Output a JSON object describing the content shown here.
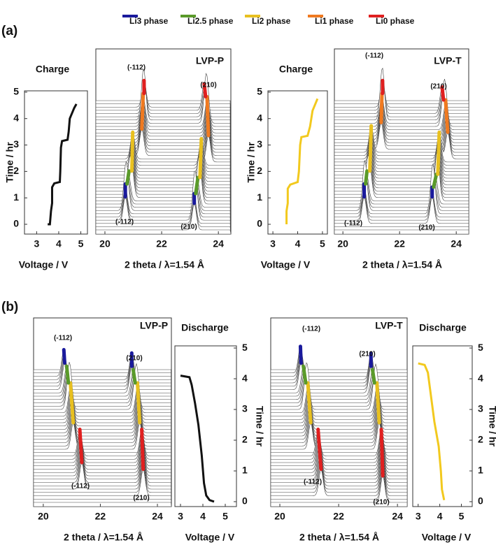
{
  "legend": [
    {
      "name": "Li3 phase",
      "color": "#1a1a9c"
    },
    {
      "name": "Li2.5 phase",
      "color": "#5a9a2a"
    },
    {
      "name": "Li2 phase",
      "color": "#e8c020"
    },
    {
      "name": "Li1 phase",
      "color": "#f07a20"
    },
    {
      "name": "Li0 phase",
      "color": "#e02020"
    }
  ],
  "panel_labels": [
    "(a)",
    "(b)"
  ],
  "chart_data": [
    {
      "type": "line",
      "title": "Charge",
      "xlabel": "Voltage / V",
      "ylabel": "Time / hr",
      "yaxis_side": "left",
      "color": "#111111",
      "x": [
        3.5,
        3.6,
        3.65,
        3.7,
        3.7,
        3.8,
        4.05,
        4.07,
        4.1,
        4.15,
        4.4,
        4.45,
        4.5,
        4.7,
        4.8
      ],
      "values": [
        0,
        0,
        0.5,
        0.8,
        1.4,
        1.55,
        1.6,
        2.0,
        2.9,
        3.15,
        3.2,
        3.5,
        4.0,
        4.4,
        4.55
      ],
      "xlim": [
        2.45,
        5.3
      ],
      "xticks": [
        3,
        4,
        5
      ],
      "ylim": [
        -0.37,
        5.05
      ],
      "yticks": [
        0,
        1,
        2,
        3,
        4,
        5
      ]
    },
    {
      "type": "waterfall",
      "title": "LVP-P",
      "xlabel": "2 theta / λ=1.54 Å",
      "xlim": [
        19.68,
        24.44
      ],
      "xticks": [
        20,
        22,
        24
      ],
      "ylim": [
        0,
        40
      ],
      "annotations": [
        "(-112)",
        "(210)",
        "(-112)",
        "(210)"
      ],
      "series": [
        {
          "name": "Li3 phase",
          "color": "#1a1a9c",
          "x": [
            20.72,
            20.72
          ],
          "values": [
            2,
            6
          ]
        },
        {
          "name": "Li2.5 phase",
          "color": "#5a9a2a",
          "x": [
            20.78,
            20.85
          ],
          "values": [
            6,
            10
          ]
        },
        {
          "name": "Li2 phase",
          "color": "#e8c020",
          "x": [
            20.95,
            20.98
          ],
          "values": [
            10,
            22
          ]
        },
        {
          "name": "Li1 phase",
          "color": "#f07a20",
          "x": [
            21.3,
            21.35
          ],
          "values": [
            23,
            34
          ]
        },
        {
          "name": "Li0 phase",
          "color": "#e02020",
          "x": [
            21.38,
            21.38
          ],
          "values": [
            34,
            38
          ]
        },
        {
          "name": "Li3 phase",
          "color": "#1a1a9c",
          "x": [
            23.15,
            23.15
          ],
          "values": [
            0,
            3
          ]
        },
        {
          "name": "Li2.5 phase",
          "color": "#5a9a2a",
          "x": [
            23.2,
            23.28
          ],
          "values": [
            3,
            8
          ]
        },
        {
          "name": "Li2 phase",
          "color": "#e8c020",
          "x": [
            23.35,
            23.4
          ],
          "values": [
            8,
            20
          ]
        },
        {
          "name": "Li1 phase",
          "color": "#f07a20",
          "x": [
            23.65,
            23.6
          ],
          "values": [
            21,
            33
          ]
        },
        {
          "name": "Li0 phase",
          "color": "#e02020",
          "x": [
            23.55,
            23.5
          ],
          "values": [
            33,
            37
          ]
        }
      ]
    },
    {
      "type": "line",
      "title": "Charge",
      "xlabel": "Voltage / V",
      "ylabel": "Time / hr",
      "yaxis_side": "left",
      "color": "#f2c91e",
      "x": [
        3.55,
        3.55,
        3.6,
        3.6,
        3.7,
        4.0,
        4.05,
        4.1,
        4.15,
        4.4,
        4.5,
        4.6,
        4.8
      ],
      "values": [
        0,
        0.5,
        0.8,
        1.35,
        1.5,
        1.6,
        2.0,
        3.0,
        3.3,
        3.35,
        3.7,
        4.3,
        4.75
      ],
      "xlim": [
        2.8,
        5.2
      ],
      "xticks": [
        3,
        4,
        5
      ],
      "ylim": [
        -0.37,
        5.05
      ],
      "yticks": [
        0,
        1,
        2,
        3,
        4,
        5
      ]
    },
    {
      "type": "waterfall",
      "title": "LVP-T",
      "xlabel": "2 theta / λ=1.54 Å",
      "xlim": [
        19.7,
        24.44
      ],
      "xticks": [
        20,
        22,
        24
      ],
      "ylim": [
        0,
        40
      ],
      "annotations": [
        "(-112)",
        "(210)",
        "(-112)",
        "(210)"
      ],
      "series": [
        {
          "name": "Li3 phase",
          "color": "#1a1a9c",
          "x": [
            20.75,
            20.75
          ],
          "values": [
            2,
            6
          ]
        },
        {
          "name": "Li2.5 phase",
          "color": "#5a9a2a",
          "x": [
            20.8,
            20.85
          ],
          "values": [
            6,
            10
          ]
        },
        {
          "name": "Li2 phase",
          "color": "#e8c020",
          "x": [
            20.95,
            21.0
          ],
          "values": [
            10,
            24
          ]
        },
        {
          "name": "Li1 phase",
          "color": "#f07a20",
          "x": [
            21.35,
            21.38
          ],
          "values": [
            25,
            34
          ]
        },
        {
          "name": "Li0 phase",
          "color": "#e02020",
          "x": [
            21.4,
            21.4
          ],
          "values": [
            34,
            38
          ]
        },
        {
          "name": "Li3 phase",
          "color": "#1a1a9c",
          "x": [
            23.15,
            23.15
          ],
          "values": [
            2,
            5
          ]
        },
        {
          "name": "Li2.5 phase",
          "color": "#5a9a2a",
          "x": [
            23.2,
            23.3
          ],
          "values": [
            5,
            9
          ]
        },
        {
          "name": "Li2 phase",
          "color": "#e8c020",
          "x": [
            23.35,
            23.4
          ],
          "values": [
            9,
            22
          ]
        },
        {
          "name": "Li1 phase",
          "color": "#f07a20",
          "x": [
            23.7,
            23.62
          ],
          "values": [
            22,
            32
          ]
        },
        {
          "name": "Li0 phase",
          "color": "#e02020",
          "x": [
            23.55,
            23.5
          ],
          "values": [
            32,
            36
          ]
        }
      ]
    },
    {
      "type": "waterfall",
      "title": "LVP-P",
      "xlabel": "2 theta / λ=1.54 Å",
      "xlim": [
        19.66,
        24.49
      ],
      "xticks": [
        20,
        22,
        24
      ],
      "ylim": [
        0,
        40
      ],
      "annotations": [
        "(-112)",
        "(210)",
        "(-112)",
        "(210)"
      ],
      "series": [
        {
          "name": "Li0 phase",
          "color": "#e02020",
          "x": [
            21.35,
            21.28
          ],
          "values": [
            4,
            14
          ]
        },
        {
          "name": "Li2 phase",
          "color": "#e8c020",
          "x": [
            21.05,
            20.95
          ],
          "values": [
            16,
            28
          ]
        },
        {
          "name": "Li2.5 phase",
          "color": "#5a9a2a",
          "x": [
            20.88,
            20.82
          ],
          "values": [
            28,
            33
          ]
        },
        {
          "name": "Li3 phase",
          "color": "#1a1a9c",
          "x": [
            20.75,
            20.72
          ],
          "values": [
            34,
            38
          ]
        },
        {
          "name": "Li0 phase",
          "color": "#e02020",
          "x": [
            23.5,
            23.45
          ],
          "values": [
            2,
            14
          ]
        },
        {
          "name": "Li2 phase",
          "color": "#e8c020",
          "x": [
            23.38,
            23.3
          ],
          "values": [
            16,
            28
          ]
        },
        {
          "name": "Li2.5 phase",
          "color": "#5a9a2a",
          "x": [
            23.22,
            23.15
          ],
          "values": [
            28,
            32
          ]
        },
        {
          "name": "Li3 phase",
          "color": "#1a1a9c",
          "x": [
            23.1,
            23.1
          ],
          "values": [
            33,
            37
          ]
        }
      ]
    },
    {
      "type": "line",
      "title": "Discharge",
      "xlabel": "Voltage / V",
      "ylabel": "Time / hr",
      "yaxis_side": "right",
      "color": "#111111",
      "x": [
        3.0,
        3.4,
        3.5,
        3.65,
        3.8,
        3.95,
        4.05,
        4.15,
        4.3,
        4.5
      ],
      "values": [
        4.1,
        4.05,
        3.8,
        3.2,
        2.5,
        1.5,
        0.6,
        0.2,
        0.05,
        0
      ],
      "xlim": [
        2.75,
        5.5
      ],
      "xticks": [
        3,
        4,
        5
      ],
      "ylim": [
        -0.16,
        5.07
      ],
      "yticks": [
        0,
        1,
        2,
        3,
        4,
        5
      ]
    },
    {
      "type": "waterfall",
      "title": "LVP-T",
      "xlabel": "2 theta / λ=1.54 Å",
      "xlim": [
        19.69,
        24.33
      ],
      "xticks": [
        20,
        22,
        24
      ],
      "ylim": [
        0,
        40
      ],
      "annotations": [
        "(-112)",
        "(210)",
        "(-112)",
        "(210)"
      ],
      "series": [
        {
          "name": "Li0 phase",
          "color": "#e02020",
          "x": [
            21.4,
            21.3
          ],
          "values": [
            2,
            14
          ]
        },
        {
          "name": "Li2 phase",
          "color": "#e8c020",
          "x": [
            21.05,
            20.95
          ],
          "values": [
            16,
            28
          ]
        },
        {
          "name": "Li2.5 phase",
          "color": "#5a9a2a",
          "x": [
            20.88,
            20.8
          ],
          "values": [
            28,
            33
          ]
        },
        {
          "name": "Li3 phase",
          "color": "#1a1a9c",
          "x": [
            20.72,
            20.7
          ],
          "values": [
            34,
            39
          ]
        },
        {
          "name": "Li0 phase",
          "color": "#e02020",
          "x": [
            23.5,
            23.45
          ],
          "values": [
            0,
            14
          ]
        },
        {
          "name": "Li2 phase",
          "color": "#e8c020",
          "x": [
            23.38,
            23.3
          ],
          "values": [
            16,
            28
          ]
        },
        {
          "name": "Li2.5 phase",
          "color": "#5a9a2a",
          "x": [
            23.22,
            23.15
          ],
          "values": [
            28,
            32
          ]
        },
        {
          "name": "Li3 phase",
          "color": "#1a1a9c",
          "x": [
            23.1,
            23.1
          ],
          "values": [
            33,
            37
          ]
        }
      ]
    },
    {
      "type": "line",
      "title": "Discharge",
      "xlabel": "Voltage / V",
      "ylabel": "Time / hr",
      "yaxis_side": "right",
      "color": "#f2c91e",
      "x": [
        3.0,
        3.3,
        3.45,
        3.6,
        3.75,
        3.95,
        4.05,
        4.1,
        4.2
      ],
      "values": [
        4.5,
        4.45,
        4.2,
        3.4,
        2.6,
        1.8,
        1.0,
        0.4,
        0.05
      ],
      "xlim": [
        2.75,
        5.5
      ],
      "xticks": [
        3,
        4,
        5
      ],
      "ylim": [
        -0.16,
        5.07
      ],
      "yticks": [
        0,
        1,
        2,
        3,
        4,
        5
      ]
    }
  ]
}
